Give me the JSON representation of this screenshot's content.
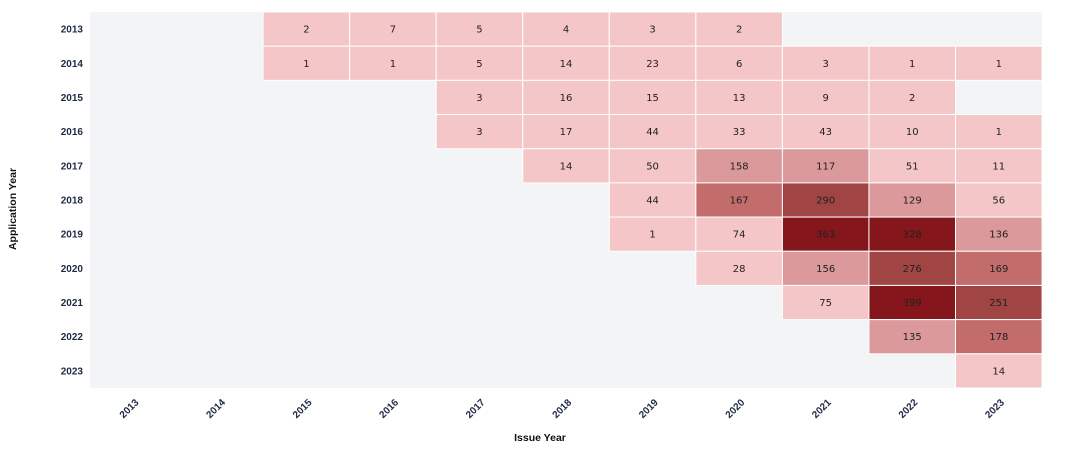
{
  "chart_data": {
    "type": "heatmap",
    "xlabel": "Issue Year",
    "ylabel": "Application Year",
    "x_categories": [
      "2013",
      "2014",
      "2015",
      "2016",
      "2017",
      "2018",
      "2019",
      "2020",
      "2021",
      "2022",
      "2023"
    ],
    "y_categories": [
      "2013",
      "2014",
      "2015",
      "2016",
      "2017",
      "2018",
      "2019",
      "2020",
      "2021",
      "2022",
      "2023"
    ],
    "values": [
      [
        null,
        null,
        2,
        7,
        5,
        4,
        3,
        2,
        null,
        null,
        null
      ],
      [
        null,
        null,
        1,
        1,
        5,
        14,
        23,
        6,
        3,
        1,
        1
      ],
      [
        null,
        null,
        null,
        null,
        3,
        16,
        15,
        13,
        9,
        2,
        null
      ],
      [
        null,
        null,
        null,
        null,
        3,
        17,
        44,
        33,
        43,
        10,
        1
      ],
      [
        null,
        null,
        null,
        null,
        null,
        14,
        50,
        158,
        117,
        51,
        11
      ],
      [
        null,
        null,
        null,
        null,
        null,
        null,
        44,
        167,
        290,
        129,
        56
      ],
      [
        null,
        null,
        null,
        null,
        null,
        null,
        1,
        74,
        363,
        328,
        136
      ],
      [
        null,
        null,
        null,
        null,
        null,
        null,
        null,
        28,
        156,
        276,
        169
      ],
      [
        null,
        null,
        null,
        null,
        null,
        null,
        null,
        null,
        75,
        399,
        251
      ],
      [
        null,
        null,
        null,
        null,
        null,
        null,
        null,
        null,
        null,
        135,
        178
      ],
      [
        null,
        null,
        null,
        null,
        null,
        null,
        null,
        null,
        null,
        null,
        14
      ]
    ],
    "color_scale": {
      "empty": "#f3f4f6",
      "stops": [
        {
          "min": 0,
          "color": "#f4c6c8"
        },
        {
          "min": 100,
          "color": "#dc999b"
        },
        {
          "min": 160,
          "color": "#c26c6c"
        },
        {
          "min": 250,
          "color": "#a14444"
        },
        {
          "min": 320,
          "color": "#85161b"
        }
      ]
    },
    "grid": false,
    "legend": "none"
  }
}
